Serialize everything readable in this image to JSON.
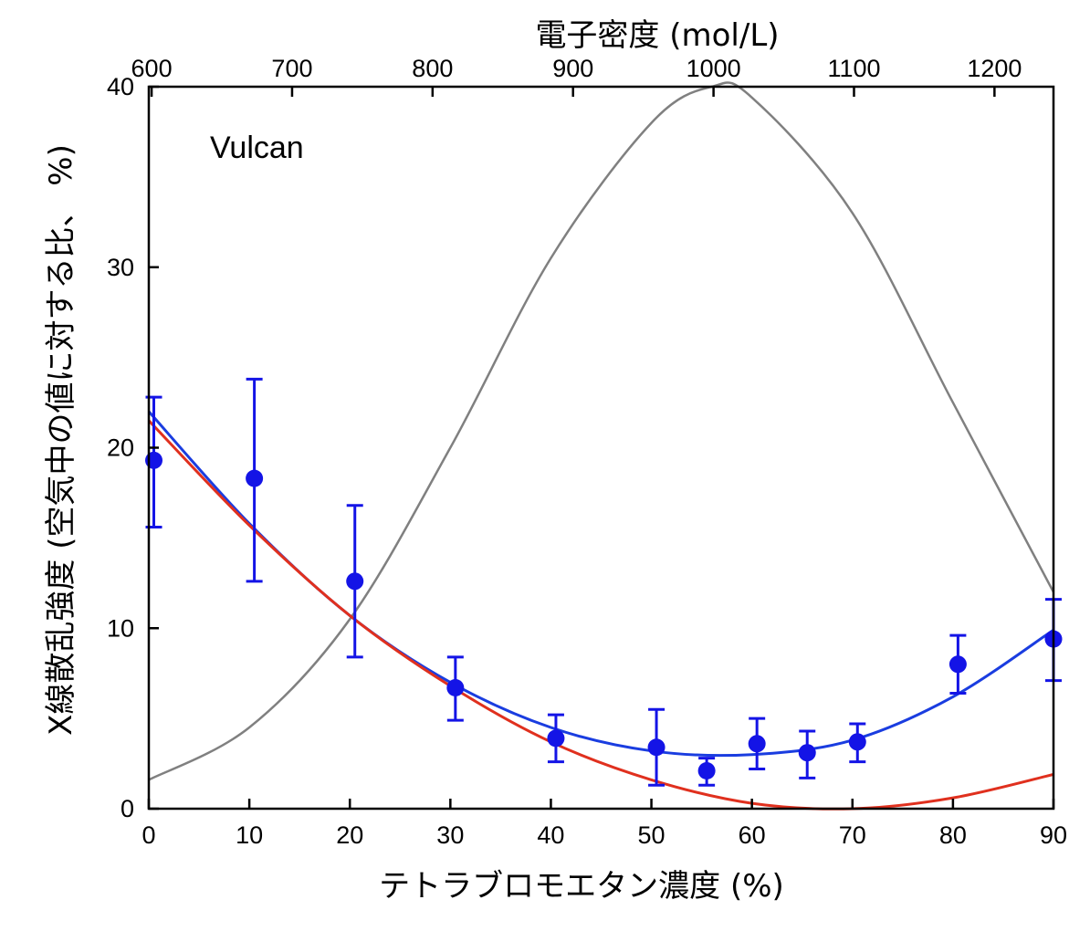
{
  "chart_data": {
    "type": "scatter",
    "annotation": "Vulcan",
    "xlabel": "テトラブロモエタン濃度 (%)",
    "x2label": "電子密度 (mol/L)",
    "ylabel": "X線散乱強度 (空気中の値に対する比、 %)",
    "xlim": [
      0,
      90
    ],
    "ylim": [
      0,
      40
    ],
    "x2lim": [
      598,
      1242
    ],
    "xticks": [
      0,
      10,
      20,
      30,
      40,
      50,
      60,
      70,
      80,
      90
    ],
    "yticks": [
      0,
      10,
      20,
      30,
      40
    ],
    "x2ticks": [
      600,
      700,
      800,
      900,
      1000,
      1100,
      1200
    ],
    "grid": false,
    "colors": {
      "points": "#1414e6",
      "blue_fit": "#1a3de0",
      "red_fit": "#e0301e",
      "gray_curve": "#808080"
    },
    "points": {
      "x": [
        0.5,
        10.5,
        20.5,
        30.5,
        40.5,
        50.5,
        55.5,
        60.5,
        65.5,
        70.5,
        80.5,
        90
      ],
      "y": [
        19.3,
        18.3,
        12.6,
        6.7,
        3.9,
        3.4,
        2.1,
        3.6,
        3.1,
        3.7,
        8.0,
        9.4
      ],
      "err_upper": [
        22.8,
        23.8,
        16.8,
        8.4,
        5.2,
        5.5,
        2.8,
        5.0,
        4.3,
        4.7,
        9.6,
        11.6
      ],
      "err_lower": [
        15.6,
        12.6,
        8.4,
        4.9,
        2.6,
        1.3,
        1.3,
        2.2,
        1.7,
        2.6,
        6.4,
        7.1
      ]
    },
    "series": [
      {
        "type": "line",
        "color": "#808080",
        "x": [
          0,
          10,
          20,
          30,
          40,
          50,
          56,
          60,
          70,
          80,
          90
        ],
        "y": [
          1.6,
          4.5,
          10.5,
          20.0,
          30.5,
          38.0,
          40.0,
          39.4,
          33.0,
          22.5,
          12.0
        ]
      },
      {
        "type": "line",
        "color": "#1a3de0",
        "x": [
          0,
          10,
          20,
          30,
          40,
          50,
          60,
          70,
          80,
          90
        ],
        "y": [
          22.0,
          15.8,
          10.7,
          7.0,
          4.5,
          3.2,
          3.0,
          3.8,
          6.2,
          9.9
        ]
      },
      {
        "type": "line",
        "color": "#e0301e",
        "x": [
          0,
          10,
          20,
          30,
          40,
          50,
          60,
          70,
          80,
          90
        ],
        "y": [
          21.5,
          15.7,
          10.7,
          6.8,
          3.7,
          1.6,
          0.3,
          0.0,
          0.6,
          1.9
        ]
      }
    ]
  }
}
